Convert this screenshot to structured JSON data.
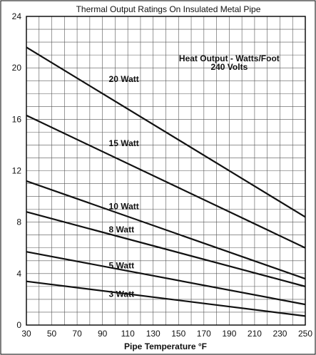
{
  "chart_data": {
    "type": "line",
    "title": "Thermal Output Ratings On Insulated Metal Pipe",
    "xlabel": "Pipe Temperature °F",
    "ylabel": "",
    "xlim": [
      30,
      250
    ],
    "ylim": [
      0,
      24
    ],
    "x_ticks": [
      30,
      50,
      70,
      90,
      110,
      130,
      150,
      170,
      190,
      210,
      230,
      250
    ],
    "y_ticks": [
      0,
      4,
      8,
      12,
      16,
      20,
      24
    ],
    "grid": true,
    "annotation": {
      "line1": "Heat Output - Watts/Foot",
      "line2": "240 Volts",
      "x": 190,
      "y": 20.5
    },
    "series": [
      {
        "name": "20 Watt",
        "x": [
          30,
          250
        ],
        "values": [
          21.6,
          8.4
        ],
        "label_x": 95,
        "label_y": 18.9
      },
      {
        "name": "15 Watt",
        "x": [
          30,
          250
        ],
        "values": [
          16.3,
          6.0
        ],
        "label_x": 95,
        "label_y": 13.9
      },
      {
        "name": "10 Watt",
        "x": [
          30,
          250
        ],
        "values": [
          11.2,
          3.6
        ],
        "label_x": 95,
        "label_y": 9.0
      },
      {
        "name": "8 Watt",
        "x": [
          30,
          250
        ],
        "values": [
          8.8,
          3.0
        ],
        "label_x": 95,
        "label_y": 7.2
      },
      {
        "name": "5 Watt",
        "x": [
          30,
          250
        ],
        "values": [
          5.7,
          1.6
        ],
        "label_x": 95,
        "label_y": 4.4
      },
      {
        "name": "3 Watt",
        "x": [
          30,
          250
        ],
        "values": [
          3.4,
          0.7
        ],
        "label_x": 95,
        "label_y": 2.2
      }
    ]
  }
}
